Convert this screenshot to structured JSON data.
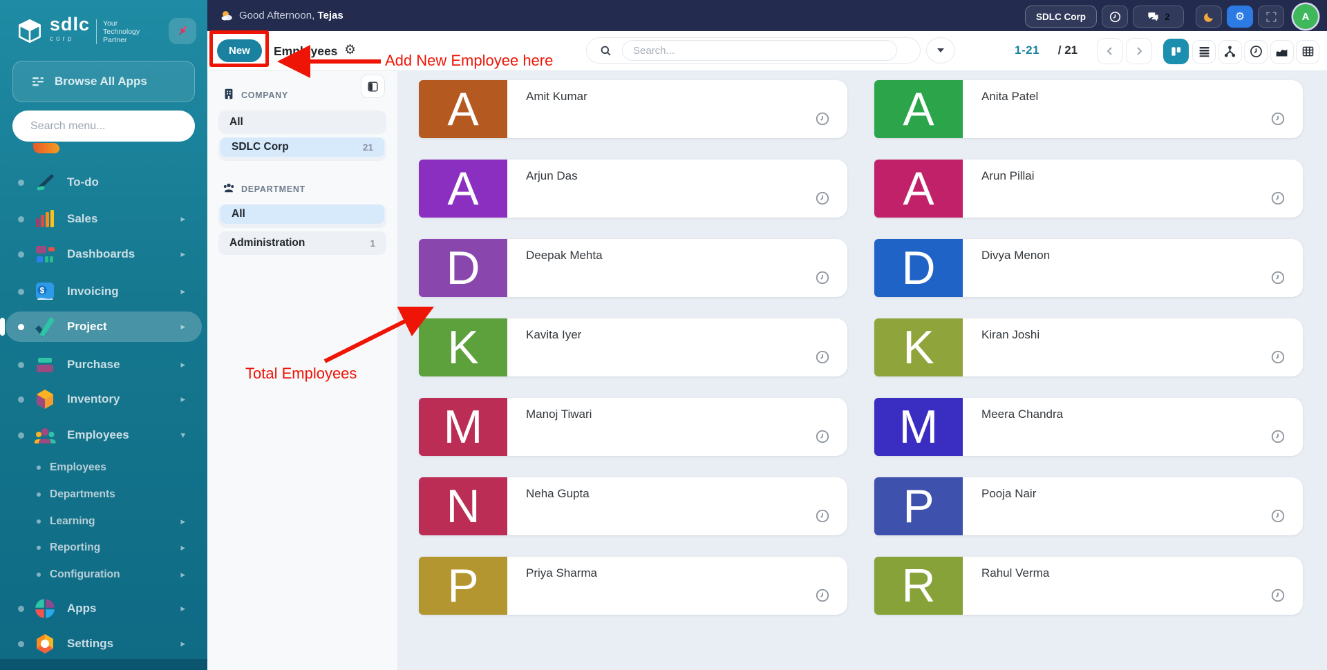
{
  "app": {
    "brand": "sdlc",
    "brand_sub": "corp",
    "tagline": "Your|Technology|Partner"
  },
  "sidebar": {
    "pin_icon": "pushpin-icon",
    "browse_apps_label": "Browse All Apps",
    "menu_search_placeholder": "Search menu...",
    "items": [
      {
        "label": "To-do",
        "icon": "todo-icon",
        "type": "main",
        "chevron": "",
        "active": false
      },
      {
        "label": "Sales",
        "icon": "sales-icon",
        "type": "main",
        "chevron": "right",
        "active": false
      },
      {
        "label": "Dashboards",
        "icon": "dashboards-icon",
        "type": "main",
        "chevron": "right",
        "active": false
      },
      {
        "label": "Invoicing",
        "icon": "invoicing-icon",
        "type": "main",
        "chevron": "right",
        "active": false
      },
      {
        "label": "Project",
        "icon": "project-icon",
        "type": "main",
        "chevron": "right",
        "active": true
      },
      {
        "label": "Purchase",
        "icon": "purchase-icon",
        "type": "main",
        "chevron": "right",
        "active": false
      },
      {
        "label": "Inventory",
        "icon": "inventory-icon",
        "type": "main",
        "chevron": "right",
        "active": false
      },
      {
        "label": "Employees",
        "icon": "employees-icon",
        "type": "main",
        "chevron": "down",
        "active": false
      },
      {
        "label": "Employees",
        "icon": "",
        "type": "sub",
        "chevron": "",
        "active": false
      },
      {
        "label": "Departments",
        "icon": "",
        "type": "sub",
        "chevron": "",
        "active": false
      },
      {
        "label": "Learning",
        "icon": "",
        "type": "sub",
        "chevron": "right",
        "active": false
      },
      {
        "label": "Reporting",
        "icon": "",
        "type": "sub",
        "chevron": "right",
        "active": false
      },
      {
        "label": "Configuration",
        "icon": "",
        "type": "sub",
        "chevron": "right",
        "active": false
      },
      {
        "label": "Apps",
        "icon": "apps-icon",
        "type": "main",
        "chevron": "right",
        "active": false
      },
      {
        "label": "Settings",
        "icon": "settings-icon",
        "type": "main",
        "chevron": "right",
        "active": false
      }
    ]
  },
  "topbar": {
    "weather_icon": "sun-behind-cloud-icon",
    "greeting_prefix": "Good Afternoon,",
    "greeting_name": "Tejas",
    "company_button_label": "SDLC Corp",
    "chat_badge_count": "2",
    "avatar_letter": "A",
    "icon_buttons": [
      "clock-icon",
      "chat-icon",
      "moon-icon",
      "gear-icon",
      "fullscreen-icon"
    ]
  },
  "toolbar": {
    "new_button_label": "New",
    "page_title": "Employees",
    "settings_gear_icon": "gear-icon",
    "search_placeholder": "Search...",
    "pagination_range": "1-21",
    "pagination_total": "/ 21",
    "view_buttons": [
      "kanban-view-icon",
      "list-view-icon",
      "hierarchy-view-icon",
      "clock-view-icon",
      "chart-view-icon",
      "table-view-icon"
    ],
    "active_view": "kanban-view-icon"
  },
  "filter_panel": {
    "toggle_icon": "panel-toggle-icon",
    "groups": [
      {
        "label": "COMPANY",
        "icon": "building-icon",
        "options": [
          {
            "label": "All",
            "count": "",
            "selected": false
          },
          {
            "label": "SDLC Corp",
            "count": "21",
            "selected": true
          }
        ]
      },
      {
        "label": "DEPARTMENT",
        "icon": "team-icon",
        "options": [
          {
            "label": "All",
            "count": "",
            "selected": true
          },
          {
            "label": "Administration",
            "count": "1",
            "selected": false
          }
        ]
      }
    ]
  },
  "employees": [
    {
      "name": "Amit Kumar",
      "letter": "A",
      "color": "#b45a20"
    },
    {
      "name": "Anita Patel",
      "letter": "A",
      "color": "#2ba44a"
    },
    {
      "name": "Arjun Das",
      "letter": "A",
      "color": "#8a2fc0"
    },
    {
      "name": "Arun Pillai",
      "letter": "A",
      "color": "#c02168"
    },
    {
      "name": "Deepak Mehta",
      "letter": "D",
      "color": "#8947ae"
    },
    {
      "name": "Divya Menon",
      "letter": "D",
      "color": "#1f63c6"
    },
    {
      "name": "Kavita Iyer",
      "letter": "K",
      "color": "#5ca13c"
    },
    {
      "name": "Kiran Joshi",
      "letter": "K",
      "color": "#8fa53b"
    },
    {
      "name": "Manoj Tiwari",
      "letter": "M",
      "color": "#bb2d55"
    },
    {
      "name": "Meera Chandra",
      "letter": "M",
      "color": "#3a2dc2"
    },
    {
      "name": "Neha Gupta",
      "letter": "N",
      "color": "#bb2d55"
    },
    {
      "name": "Pooja Nair",
      "letter": "P",
      "color": "#3e51ad"
    },
    {
      "name": "Priya Sharma",
      "letter": "P",
      "color": "#b3962f"
    },
    {
      "name": "Rahul Verma",
      "letter": "R",
      "color": "#87a238"
    }
  ],
  "annotations": {
    "new_button_note": "Add New Employee here",
    "total_note": "Total Employees",
    "color": "#ee1506"
  },
  "colors": {
    "accent_teal": "#1a81a0",
    "active_view_teal": "#1b8fad",
    "topbar_navy": "#232c4f",
    "content_bg": "#e9eef4",
    "selected_filter_bg": "#d7eafc",
    "annotation_red": "#ee1506"
  }
}
